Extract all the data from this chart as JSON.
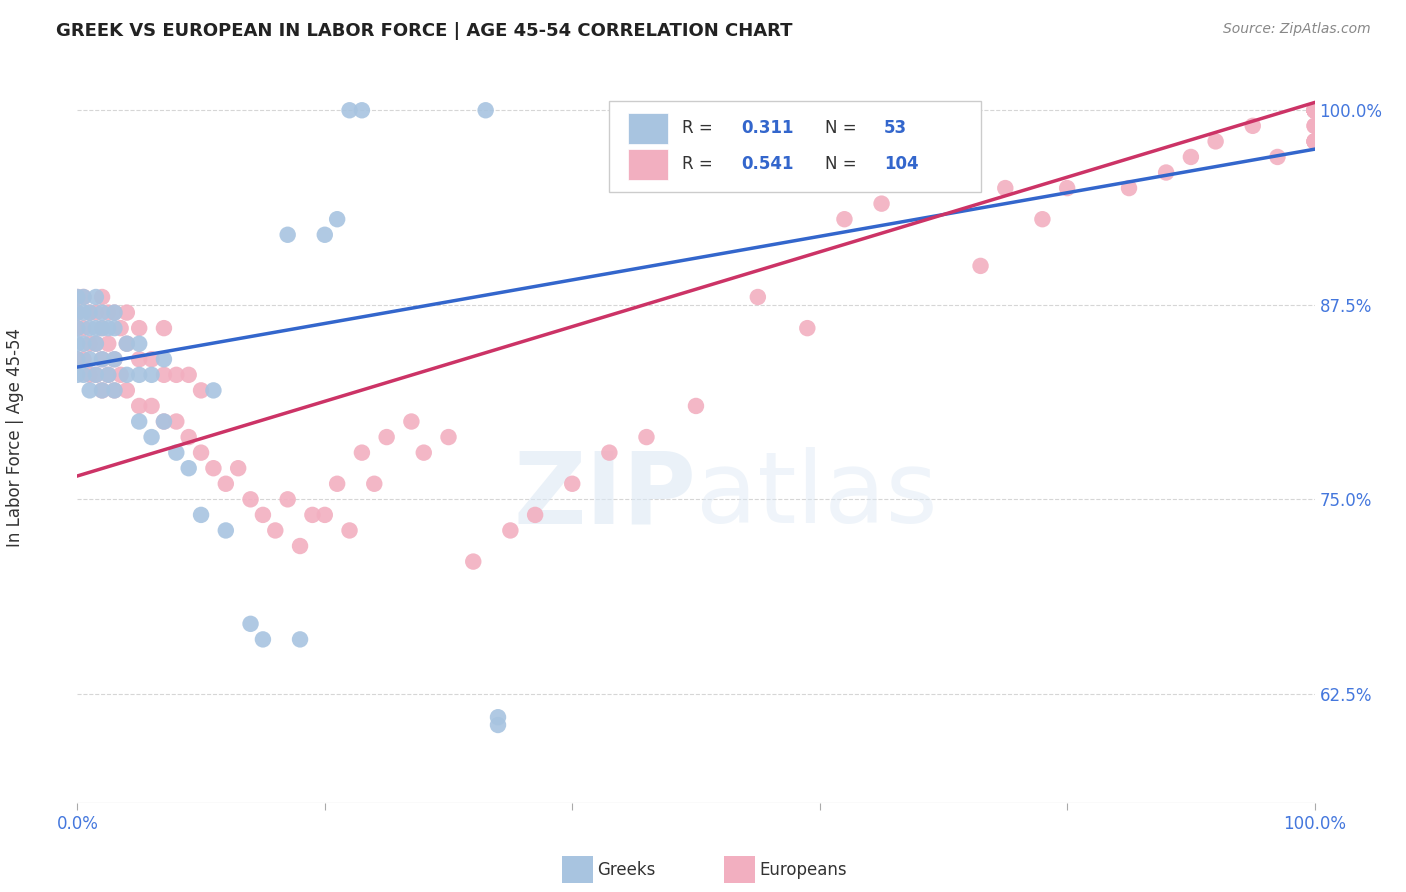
{
  "title": "GREEK VS EUROPEAN IN LABOR FORCE | AGE 45-54 CORRELATION CHART",
  "source": "Source: ZipAtlas.com",
  "ylabel": "In Labor Force | Age 45-54",
  "greeks_color": "#a8c4e0",
  "europeans_color": "#f2afc0",
  "greeks_line_color": "#3366cc",
  "europeans_line_color": "#cc3366",
  "greeks_R": 0.311,
  "greeks_N": 53,
  "europeans_R": 0.541,
  "europeans_N": 104,
  "watermark": "ZIPatlas",
  "background_color": "#ffffff",
  "xlim": [
    0.0,
    1.0
  ],
  "ylim": [
    0.555,
    1.025
  ],
  "ytick_values": [
    0.625,
    0.75,
    0.875,
    1.0
  ],
  "ytick_labels": [
    "62.5%",
    "75.0%",
    "87.5%",
    "100.0%"
  ],
  "blue_line_x0": 0.0,
  "blue_line_y0": 0.835,
  "blue_line_x1": 1.0,
  "blue_line_y1": 0.975,
  "pink_line_x0": 0.0,
  "pink_line_y0": 0.765,
  "pink_line_x1": 1.0,
  "pink_line_y1": 1.005,
  "greeks_x": [
    0.0,
    0.0,
    0.0,
    0.0,
    0.0,
    0.0,
    0.005,
    0.005,
    0.005,
    0.005,
    0.01,
    0.01,
    0.01,
    0.01,
    0.015,
    0.015,
    0.015,
    0.015,
    0.02,
    0.02,
    0.02,
    0.02,
    0.025,
    0.025,
    0.03,
    0.03,
    0.03,
    0.03,
    0.04,
    0.04,
    0.05,
    0.05,
    0.05,
    0.06,
    0.06,
    0.07,
    0.07,
    0.08,
    0.09,
    0.1,
    0.11,
    0.12,
    0.14,
    0.15,
    0.17,
    0.18,
    0.2,
    0.21,
    0.22,
    0.23,
    0.33,
    0.34,
    0.34
  ],
  "greeks_y": [
    0.83,
    0.84,
    0.85,
    0.86,
    0.87,
    0.88,
    0.83,
    0.85,
    0.87,
    0.88,
    0.82,
    0.84,
    0.86,
    0.87,
    0.83,
    0.85,
    0.86,
    0.88,
    0.82,
    0.84,
    0.86,
    0.87,
    0.83,
    0.86,
    0.82,
    0.84,
    0.86,
    0.87,
    0.83,
    0.85,
    0.8,
    0.83,
    0.85,
    0.79,
    0.83,
    0.8,
    0.84,
    0.78,
    0.77,
    0.74,
    0.82,
    0.73,
    0.67,
    0.66,
    0.92,
    0.66,
    0.92,
    0.93,
    1.0,
    1.0,
    1.0,
    0.605,
    0.61
  ],
  "europeans_x": [
    0.0,
    0.0,
    0.0,
    0.0,
    0.005,
    0.005,
    0.005,
    0.01,
    0.01,
    0.01,
    0.015,
    0.015,
    0.015,
    0.02,
    0.02,
    0.02,
    0.02,
    0.025,
    0.025,
    0.025,
    0.03,
    0.03,
    0.03,
    0.035,
    0.035,
    0.04,
    0.04,
    0.04,
    0.05,
    0.05,
    0.05,
    0.06,
    0.06,
    0.07,
    0.07,
    0.07,
    0.08,
    0.08,
    0.09,
    0.09,
    0.1,
    0.1,
    0.11,
    0.12,
    0.13,
    0.14,
    0.15,
    0.16,
    0.17,
    0.18,
    0.19,
    0.2,
    0.21,
    0.22,
    0.23,
    0.24,
    0.25,
    0.27,
    0.28,
    0.3,
    0.32,
    0.35,
    0.37,
    0.4,
    0.43,
    0.46,
    0.5,
    0.55,
    0.59,
    0.6,
    0.62,
    0.65,
    0.68,
    0.7,
    0.73,
    0.75,
    0.78,
    0.8,
    0.85,
    0.88,
    0.9,
    0.92,
    0.95,
    0.97,
    1.0,
    1.0,
    1.0,
    1.0,
    1.0,
    1.0,
    1.0,
    1.0,
    1.0,
    1.0,
    1.0,
    1.0,
    1.0,
    1.0,
    1.0,
    1.0,
    1.0,
    1.0,
    1.0,
    1.0
  ],
  "europeans_y": [
    0.84,
    0.86,
    0.87,
    0.88,
    0.84,
    0.86,
    0.88,
    0.83,
    0.85,
    0.87,
    0.83,
    0.85,
    0.87,
    0.82,
    0.84,
    0.86,
    0.88,
    0.83,
    0.85,
    0.87,
    0.82,
    0.84,
    0.87,
    0.83,
    0.86,
    0.82,
    0.85,
    0.87,
    0.81,
    0.84,
    0.86,
    0.81,
    0.84,
    0.8,
    0.83,
    0.86,
    0.8,
    0.83,
    0.79,
    0.83,
    0.78,
    0.82,
    0.77,
    0.76,
    0.77,
    0.75,
    0.74,
    0.73,
    0.75,
    0.72,
    0.74,
    0.74,
    0.76,
    0.73,
    0.78,
    0.76,
    0.79,
    0.8,
    0.78,
    0.79,
    0.71,
    0.73,
    0.74,
    0.76,
    0.78,
    0.79,
    0.81,
    0.88,
    0.86,
    1.0,
    0.93,
    0.94,
    0.98,
    0.96,
    0.9,
    0.95,
    0.93,
    0.95,
    0.95,
    0.96,
    0.97,
    0.98,
    0.99,
    0.97,
    0.98,
    0.98,
    0.98,
    0.98,
    0.99,
    0.99,
    1.0,
    1.0,
    1.0,
    1.0,
    1.0,
    1.0,
    1.0,
    1.0,
    1.0,
    1.0,
    1.0,
    1.0,
    1.0,
    1.0
  ]
}
